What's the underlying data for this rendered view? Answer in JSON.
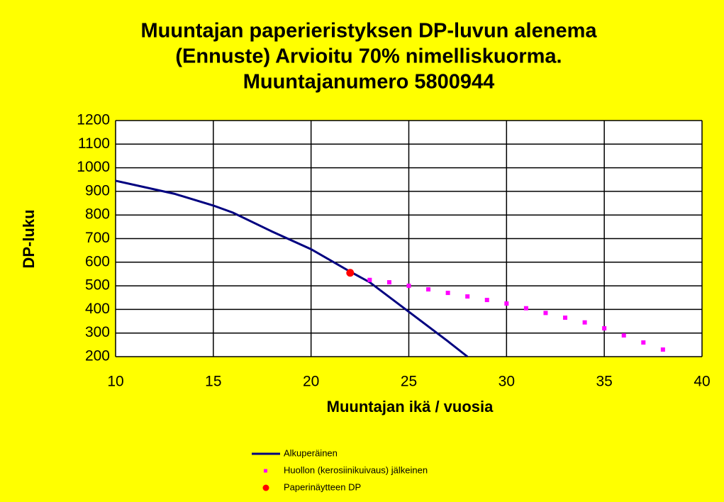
{
  "chart_data": {
    "type": "line",
    "title": [
      "Muuntajan paperieristyksen DP-luvun alenema",
      "(Ennuste) Arvioitu 70% nimelliskuorma.",
      "Muuntajanumero 5800944"
    ],
    "xlabel": "Muuntajan ikä / vuosia",
    "ylabel": "DP-luku",
    "xlim": [
      10,
      40
    ],
    "xticks": [
      10,
      15,
      20,
      25,
      30,
      35,
      40
    ],
    "ylim": [
      200,
      1200
    ],
    "yticks": [
      200,
      300,
      400,
      500,
      600,
      700,
      800,
      900,
      1000,
      1100,
      1200
    ],
    "grid": true,
    "legend": "bottom",
    "series": [
      {
        "name": "Alkuperäinen",
        "color": "#000080",
        "line": true,
        "marker": "none",
        "x": [
          10,
          13,
          15,
          16,
          18,
          20,
          22,
          23,
          25,
          27,
          28
        ],
        "values": [
          945,
          890,
          840,
          810,
          730,
          655,
          560,
          515,
          390,
          265,
          200
        ]
      },
      {
        "name": "Huollon (kerosiinikuivaus) jälkeinen",
        "color": "#ff00ff",
        "line": false,
        "marker": "square",
        "x": [
          23,
          24,
          25,
          26,
          27,
          28,
          29,
          30,
          31,
          32,
          33,
          34,
          35,
          36,
          37,
          38
        ],
        "values": [
          525,
          515,
          500,
          485,
          470,
          455,
          440,
          425,
          405,
          385,
          365,
          345,
          320,
          290,
          260,
          230
        ]
      },
      {
        "name": "Paperinäytteen DP",
        "color": "#ff0000",
        "line": false,
        "marker": "circle",
        "x": [
          22
        ],
        "values": [
          555
        ]
      }
    ]
  }
}
